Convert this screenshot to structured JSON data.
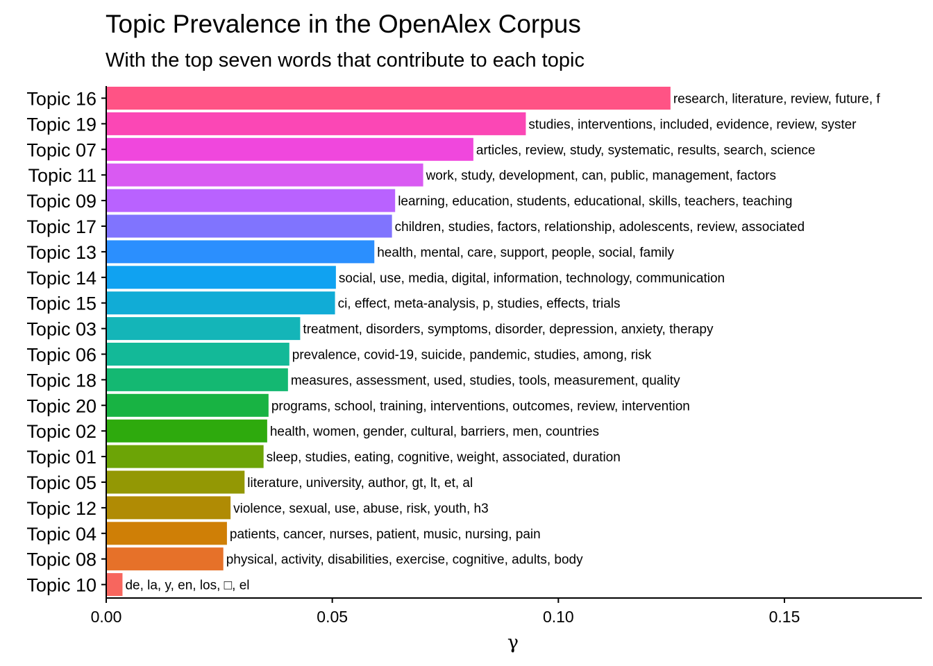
{
  "chart_data": {
    "type": "bar",
    "orientation": "horizontal",
    "title": "Topic Prevalence in the OpenAlex Corpus",
    "subtitle": "With the top seven words that contribute to each topic",
    "xlabel": "γ",
    "ylabel": "",
    "xlim": [
      0,
      0.18
    ],
    "xticks": [
      "0.00",
      "0.05",
      "0.10",
      "0.15"
    ],
    "xtick_values": [
      0,
      0.05,
      0.1,
      0.15
    ],
    "grid": false,
    "legend": "none",
    "categories": [
      "Topic 16",
      "Topic 19",
      "Topic 07",
      "Topic 11",
      "Topic 09",
      "Topic 17",
      "Topic 13",
      "Topic 14",
      "Topic 15",
      "Topic 03",
      "Topic 06",
      "Topic 18",
      "Topic 20",
      "Topic 02",
      "Topic 01",
      "Topic 05",
      "Topic 12",
      "Topic 04",
      "Topic 08",
      "Topic 10"
    ],
    "values": [
      0.1248,
      0.0928,
      0.0812,
      0.0701,
      0.0639,
      0.0632,
      0.0593,
      0.0508,
      0.0506,
      0.0429,
      0.0405,
      0.0402,
      0.0359,
      0.0356,
      0.0348,
      0.0306,
      0.0275,
      0.0267,
      0.0259,
      0.0036
    ],
    "labels": [
      "research, literature, review, future, f",
      "studies, interventions, included, evidence, review, syster",
      "articles, review, study, systematic, results, search, science",
      "work, study, development, can, public, management, factors",
      "learning, education, students, educational, skills, teachers, teaching",
      "children, studies, factors, relationship, adolescents, review, associated",
      "health, mental, care, support, people, social, family",
      "social, use, media, digital, information, technology, communication",
      "ci, effect, meta-analysis, p, studies, effects, trials",
      "treatment, disorders, symptoms, disorder, depression, anxiety, therapy",
      "prevalence, covid-19, suicide, pandemic, studies, among, risk",
      "measures, assessment, used, studies, tools, measurement, quality",
      "programs, school, training, interventions, outcomes, review, intervention",
      "health, women, gender, cultural, barriers, men, countries",
      "sleep, studies, eating, cognitive, weight, associated, duration",
      "literature, university, author, gt, lt, et, al",
      "violence, sexual, use, abuse, risk, youth, h3",
      "patients, cancer, nurses, patient, music, nursing, pain",
      "physical, activity, disabilities, exercise, cognitive, adults, body",
      "de, la, y, en, los, □, el"
    ],
    "colors": [
      "#FF5385",
      "#FB47B5",
      "#F047DD",
      "#D95AF2",
      "#B962FF",
      "#8074FE",
      "#2B8FFE",
      "#10A2F1",
      "#11ACD6",
      "#14B5B8",
      "#13B998",
      "#14B872",
      "#18B343",
      "#2EAA0D",
      "#6CA406",
      "#939804",
      "#B08B04",
      "#CF7F06",
      "#E67129",
      "#F7665E"
    ]
  }
}
